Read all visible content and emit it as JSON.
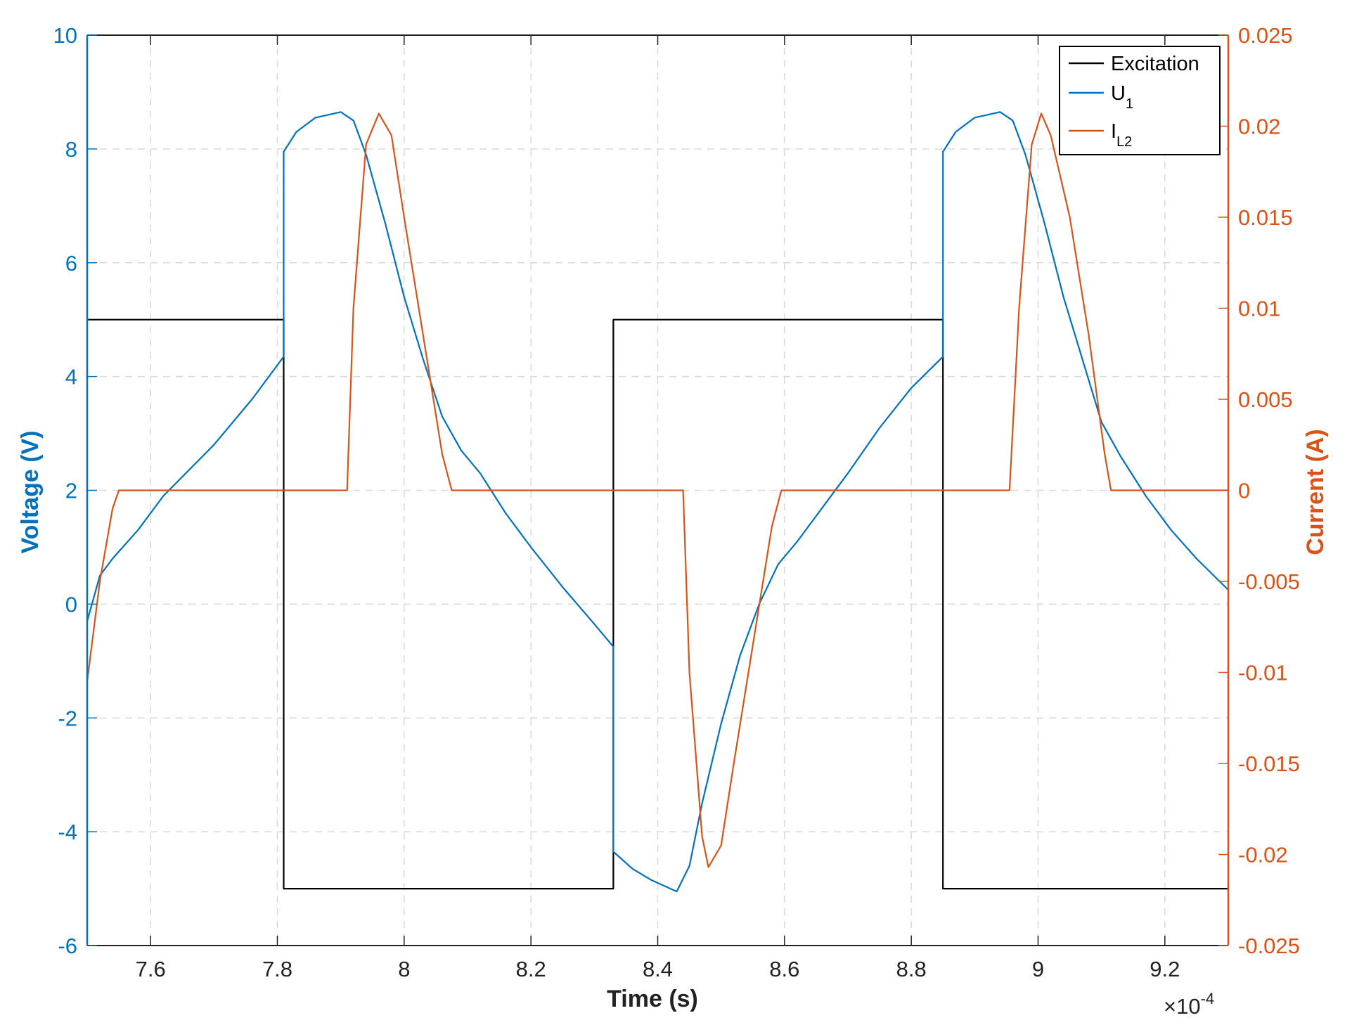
{
  "chart_data": {
    "type": "line",
    "xlabel": "Time (s)",
    "ylabel_left": "Voltage (V)",
    "ylabel_right": "Current (A)",
    "x_multiplier": {
      "base": "×10",
      "exponent": "-4"
    },
    "xlim": [
      7.5,
      9.3
    ],
    "ylim_left": [
      -6,
      10
    ],
    "ylim_right": [
      -0.025,
      0.025
    ],
    "x_ticks": [
      7.6,
      7.8,
      8,
      8.2,
      8.4,
      8.6,
      8.8,
      9,
      9.2
    ],
    "x_tick_labels": [
      "7.6",
      "7.8",
      "8",
      "8.2",
      "8.4",
      "8.6",
      "8.8",
      "9",
      "9.2"
    ],
    "y_left_ticks": [
      10,
      8,
      6,
      4,
      2,
      0,
      -2,
      -4,
      -6
    ],
    "y_left_tick_labels": [
      "10",
      "8",
      "6",
      "4",
      "2",
      "0",
      "-2",
      "-4",
      "-6"
    ],
    "y_right_ticks": [
      0.025,
      0.02,
      0.015,
      0.01,
      0.005,
      0,
      -0.005,
      -0.01,
      -0.015,
      -0.02,
      -0.025
    ],
    "y_right_tick_labels": [
      "0.025",
      "0.02",
      "0.015",
      "0.01",
      "0.005",
      "0",
      "-0.005",
      "-0.01",
      "-0.015",
      "-0.02",
      "-0.025"
    ],
    "grid": true,
    "legend_position": "top-right",
    "colors": {
      "left_axis": "#0072BD",
      "right_axis": "#D95319",
      "excitation": "#000000",
      "box": "#000000"
    },
    "series": [
      {
        "name": "Excitation",
        "axis": "left",
        "color": "#000000",
        "points": [
          [
            7.5,
            5
          ],
          [
            7.81,
            5
          ],
          [
            7.81,
            -5
          ],
          [
            8.33,
            -5
          ],
          [
            8.33,
            5
          ],
          [
            8.85,
            5
          ],
          [
            8.85,
            -5
          ],
          [
            9.3,
            -5
          ]
        ]
      },
      {
        "name": "U",
        "name_sub": "1",
        "axis": "left",
        "color": "#0072BD",
        "points": [
          [
            7.5,
            -0.3
          ],
          [
            7.52,
            0.5
          ],
          [
            7.54,
            0.8
          ],
          [
            7.58,
            1.3
          ],
          [
            7.62,
            1.9
          ],
          [
            7.7,
            2.8
          ],
          [
            7.76,
            3.6
          ],
          [
            7.81,
            4.35
          ],
          [
            7.81,
            7.95
          ],
          [
            7.83,
            8.3
          ],
          [
            7.86,
            8.55
          ],
          [
            7.9,
            8.65
          ],
          [
            7.92,
            8.5
          ],
          [
            7.94,
            7.9
          ],
          [
            7.97,
            6.7
          ],
          [
            8.0,
            5.4
          ],
          [
            8.03,
            4.3
          ],
          [
            8.06,
            3.3
          ],
          [
            8.09,
            2.7
          ],
          [
            8.12,
            2.3
          ],
          [
            8.16,
            1.6
          ],
          [
            8.2,
            1.0
          ],
          [
            8.25,
            0.3
          ],
          [
            8.3,
            -0.35
          ],
          [
            8.33,
            -0.75
          ],
          [
            8.33,
            -4.35
          ],
          [
            8.36,
            -4.65
          ],
          [
            8.39,
            -4.85
          ],
          [
            8.42,
            -5.0
          ],
          [
            8.43,
            -5.05
          ],
          [
            8.45,
            -4.6
          ],
          [
            8.47,
            -3.5
          ],
          [
            8.5,
            -2.1
          ],
          [
            8.53,
            -0.9
          ],
          [
            8.56,
            0.0
          ],
          [
            8.59,
            0.7
          ],
          [
            8.62,
            1.1
          ],
          [
            8.66,
            1.7
          ],
          [
            8.7,
            2.3
          ],
          [
            8.75,
            3.1
          ],
          [
            8.8,
            3.8
          ],
          [
            8.85,
            4.35
          ],
          [
            8.85,
            7.95
          ],
          [
            8.87,
            8.3
          ],
          [
            8.9,
            8.55
          ],
          [
            8.94,
            8.65
          ],
          [
            8.96,
            8.5
          ],
          [
            8.98,
            7.9
          ],
          [
            9.01,
            6.7
          ],
          [
            9.04,
            5.4
          ],
          [
            9.07,
            4.3
          ],
          [
            9.1,
            3.2
          ],
          [
            9.13,
            2.6
          ],
          [
            9.17,
            1.9
          ],
          [
            9.21,
            1.3
          ],
          [
            9.25,
            0.8
          ],
          [
            9.3,
            0.25
          ]
        ]
      },
      {
        "name": "I",
        "name_sub": "L2",
        "axis": "right",
        "color": "#D95319",
        "points": [
          [
            7.5,
            -0.0105
          ],
          [
            7.52,
            -0.005
          ],
          [
            7.54,
            -0.001
          ],
          [
            7.55,
            0.0
          ],
          [
            7.9,
            0.0
          ],
          [
            7.91,
            0.0
          ],
          [
            7.92,
            0.01
          ],
          [
            7.94,
            0.019
          ],
          [
            7.96,
            0.0207
          ],
          [
            7.98,
            0.0195
          ],
          [
            8.0,
            0.015
          ],
          [
            8.03,
            0.0085
          ],
          [
            8.06,
            0.002
          ],
          [
            8.075,
            0.0
          ],
          [
            8.43,
            0.0
          ],
          [
            8.44,
            0.0
          ],
          [
            8.45,
            -0.01
          ],
          [
            8.47,
            -0.019
          ],
          [
            8.48,
            -0.0207
          ],
          [
            8.5,
            -0.0195
          ],
          [
            8.52,
            -0.015
          ],
          [
            8.55,
            -0.0085
          ],
          [
            8.58,
            -0.002
          ],
          [
            8.595,
            0.0
          ],
          [
            8.95,
            0.0
          ],
          [
            8.955,
            0.0
          ],
          [
            8.97,
            0.01
          ],
          [
            8.99,
            0.019
          ],
          [
            9.005,
            0.0207
          ],
          [
            9.02,
            0.0195
          ],
          [
            9.05,
            0.015
          ],
          [
            9.08,
            0.0085
          ],
          [
            9.105,
            0.002
          ],
          [
            9.115,
            0.0
          ],
          [
            9.3,
            0.0
          ]
        ]
      }
    ]
  }
}
